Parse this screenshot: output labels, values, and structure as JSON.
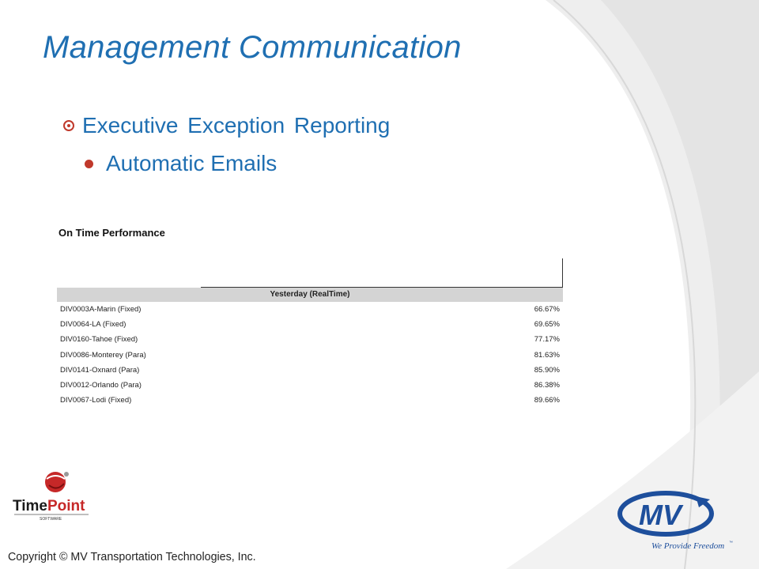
{
  "slide": {
    "title": "Management Communication",
    "bullet_level1": "Executive Exception Reporting",
    "bullet_level2": "Automatic Emails"
  },
  "report": {
    "title": "On Time Performance",
    "column_header": "Yesterday (RealTime)",
    "rows": [
      {
        "division": "DIV0003A-Marin (Fixed)",
        "value": "66.67%"
      },
      {
        "division": "DIV0064-LA (Fixed)",
        "value": "69.65%"
      },
      {
        "division": "DIV0160-Tahoe (Fixed)",
        "value": "77.17%"
      },
      {
        "division": "DIV0086-Monterey (Para)",
        "value": "81.63%"
      },
      {
        "division": "DIV0141-Oxnard (Para)",
        "value": "85.90%"
      },
      {
        "division": "DIV0012-Orlando (Para)",
        "value": "86.38%"
      },
      {
        "division": "DIV0067-Lodi (Fixed)",
        "value": "89.66%"
      }
    ]
  },
  "footer": {
    "copyright": "Copyright © MV Transportation Technologies, Inc."
  },
  "logos": {
    "timepoint": {
      "word1": "Time",
      "word2": "Point",
      "sub": "SOFTWARE"
    },
    "mv": {
      "mark": "MV",
      "tagline": "We Provide Freedom",
      "trademark": "™"
    }
  },
  "colors": {
    "title": "#1f6fb2",
    "bullet_accent": "#c0392b",
    "header_fill": "#d4d4d4",
    "mv_blue": "#1e4f9c"
  },
  "icons": {
    "bullet1": "circle-dot-bullet-icon",
    "bullet2": "filled-dot-bullet-icon"
  }
}
